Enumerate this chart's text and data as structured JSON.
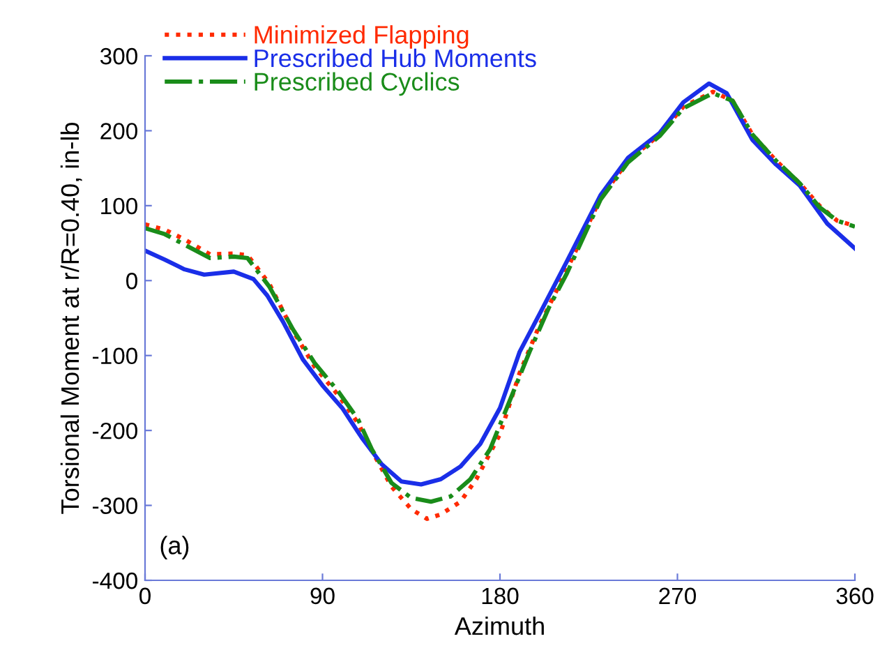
{
  "chart_data": {
    "type": "line",
    "xlabel": "Azimuth",
    "ylabel": "Torsional Moment at r/R=0.40, in-lb",
    "xlim": [
      0,
      360
    ],
    "ylim": [
      -400,
      300
    ],
    "xticks": [
      0,
      90,
      180,
      270,
      360
    ],
    "yticks": [
      -400,
      -300,
      -200,
      -100,
      0,
      100,
      200,
      300
    ],
    "grid": false,
    "legend": "top left",
    "annotations": [
      "(a)"
    ],
    "series": [
      {
        "name": "Minimized Flapping",
        "color": "#ff2a00",
        "line_style": "dotted",
        "x": [
          0,
          10,
          20,
          33,
          45,
          52,
          63,
          75,
          86,
          98,
          108,
          115,
          125,
          135,
          143,
          150,
          160,
          168,
          180,
          190,
          200,
          214,
          231,
          245,
          261,
          273,
          288,
          298,
          308,
          320,
          332,
          342,
          351,
          360
        ],
        "values": [
          75,
          68,
          55,
          35,
          36,
          34,
          -4,
          -67,
          -115,
          -153,
          -190,
          -227,
          -275,
          -305,
          -318,
          -312,
          -295,
          -265,
          -205,
          -123,
          -60,
          15,
          110,
          160,
          195,
          232,
          252,
          240,
          195,
          160,
          130,
          100,
          80,
          73
        ]
      },
      {
        "name": "Prescribed Hub Moments",
        "color": "#1a2ee8",
        "line_style": "solid",
        "x": [
          0,
          10,
          20,
          30,
          45,
          55,
          62,
          70,
          80,
          90,
          100,
          110,
          120,
          130,
          140,
          150,
          160,
          170,
          180,
          190,
          200,
          214,
          231,
          245,
          261,
          273,
          286,
          295,
          308,
          320,
          332,
          346,
          360
        ],
        "values": [
          40,
          28,
          15,
          8,
          12,
          2,
          -20,
          -55,
          -105,
          -140,
          -170,
          -210,
          -245,
          -268,
          -272,
          -265,
          -248,
          -218,
          -170,
          -95,
          -45,
          26,
          114,
          164,
          197,
          238,
          263,
          250,
          188,
          155,
          127,
          76,
          43
        ]
      },
      {
        "name": "Prescribed Cyclics",
        "color": "#1a8c1a",
        "line_style": "dashdot",
        "x": [
          0,
          10,
          20,
          33,
          45,
          52,
          63,
          75,
          86,
          98,
          108,
          115,
          125,
          135,
          145,
          155,
          165,
          175,
          185,
          195,
          205,
          214,
          231,
          245,
          261,
          273,
          288,
          298,
          308,
          320,
          332,
          342,
          351,
          360
        ],
        "values": [
          70,
          62,
          48,
          30,
          32,
          30,
          -8,
          -65,
          -110,
          -148,
          -185,
          -225,
          -270,
          -290,
          -295,
          -288,
          -265,
          -225,
          -160,
          -95,
          -35,
          10,
          108,
          158,
          193,
          230,
          250,
          240,
          195,
          160,
          130,
          98,
          80,
          72
        ]
      }
    ]
  }
}
